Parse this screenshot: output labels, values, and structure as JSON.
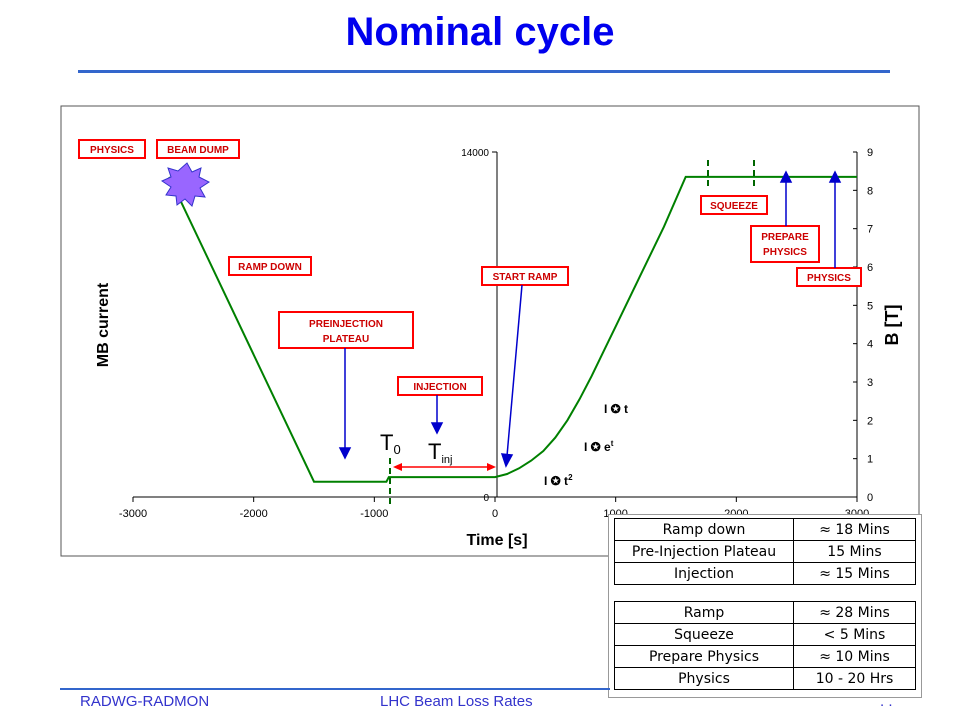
{
  "slide": {
    "title": "Nominal cycle",
    "footer_left": "RADWG-RADMON",
    "footer_center": "LHC Beam Loss Rates",
    "footer_right": ". ."
  },
  "chart_data": {
    "type": "line",
    "title": "",
    "xlabel": "Time [s]",
    "ylabel_left": "MB current",
    "ylabel_right": "B [T]",
    "xlim": [
      -3000,
      3000
    ],
    "ylim_left": [
      0,
      14000
    ],
    "ylim_right": [
      0,
      9
    ],
    "x_ticks": [
      "-3000",
      "-2000",
      "-1000",
      "0",
      "1000",
      "2000",
      "3000"
    ],
    "y_left_ticks": [
      "0",
      "14000"
    ],
    "y_right_ticks": [
      "0",
      "1",
      "2",
      "3",
      "4",
      "5",
      "6",
      "7",
      "8",
      "9"
    ],
    "series": [
      {
        "name": "",
        "color": "#008000",
        "x": [
          -2700,
          -1500,
          -900,
          -880,
          0,
          100,
          200,
          300,
          400,
          500,
          600,
          700,
          800,
          900,
          1000,
          1200,
          1400,
          1580,
          3000
        ],
        "y": [
          8.35,
          0.4,
          0.4,
          0.52,
          0.52,
          0.6,
          0.75,
          0.95,
          1.2,
          1.55,
          2.0,
          2.55,
          3.15,
          3.8,
          4.45,
          5.75,
          7.05,
          8.35,
          8.35
        ]
      }
    ],
    "annotations": {
      "physics_left": "PHYSICS",
      "beam_dump": "BEAM DUMP",
      "ramp_down": "RAMP DOWN",
      "preinjection_line1": "PREINJECTION",
      "preinjection_line2": "PLATEAU",
      "injection": "INJECTION",
      "start_ramp": "START RAMP",
      "squeeze": "SQUEEZE",
      "prepare_line1": "PREPARE",
      "prepare_line2": "PHYSICS",
      "physics_right": "PHYSICS",
      "t0_main": "T",
      "t0_sub": "0",
      "tinj_main": "T",
      "tinj_sub": "inj",
      "law_t2_base": "I ✪ t",
      "law_t2_sup": "2",
      "law_exp_base": "I ✪ e",
      "law_exp_sup": "t",
      "law_lin": "I ✪ t"
    }
  },
  "durations_table": [
    {
      "phase": "Ramp down",
      "duration": "≈ 18 Mins"
    },
    {
      "phase": "Pre-Injection Plateau",
      "duration": "15 Mins"
    },
    {
      "phase": "Injection",
      "duration": "≈ 15 Mins"
    },
    {
      "phase": "Ramp",
      "duration": "≈ 28 Mins"
    },
    {
      "phase": "Squeeze",
      "duration": "< 5 Mins"
    },
    {
      "phase": "Prepare Physics",
      "duration": "≈ 10 Mins"
    },
    {
      "phase": "Physics",
      "duration": "10 - 20 Hrs"
    }
  ],
  "colors": {
    "title": "#0000ee",
    "curve": "#008000",
    "box_border": "#ff0000",
    "box_text": "#cc0000",
    "arrow": "#0000cc",
    "marker_dash": "#006600",
    "tinj_arrow": "#ff0000",
    "rule": "#3366cc"
  }
}
